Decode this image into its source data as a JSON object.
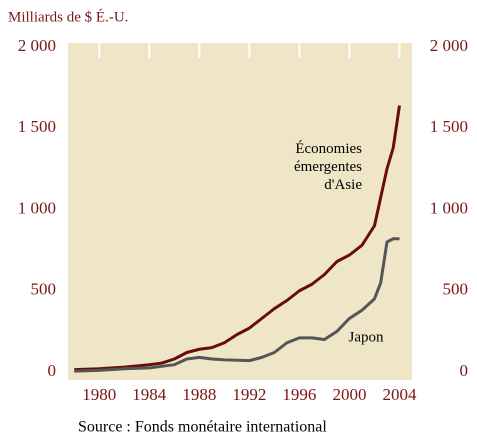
{
  "chart_data": {
    "type": "line",
    "title": "Milliards de $ É.-U.",
    "source": "Source : Fonds monétaire international",
    "xlim": [
      1977.5,
      2005
    ],
    "xticks": [
      1980,
      1984,
      1988,
      1992,
      1996,
      2000,
      2004
    ],
    "ylim": [
      0,
      2000
    ],
    "yticks": [
      0,
      500,
      {
        "value": 1000,
        "label": "1 000"
      },
      {
        "value": 1500,
        "label": "1 500"
      },
      {
        "value": 2000,
        "label": "2 000"
      }
    ],
    "y2lim": [
      0,
      2000
    ],
    "y2ticks": [
      0,
      500,
      {
        "value": 1000,
        "label": "1 000"
      },
      {
        "value": 1500,
        "label": "1 500"
      },
      {
        "value": 2000,
        "label": "2 000"
      }
    ],
    "series": [
      {
        "name": "Économies émergentes d'Asie",
        "color": "#6b0c0c",
        "x": [
          1978,
          1980,
          1982,
          1984,
          1985,
          1986,
          1987,
          1988,
          1989,
          1990,
          1991,
          1992,
          1993,
          1994,
          1995,
          1996,
          1997,
          1998,
          1999,
          2000,
          2001,
          2002,
          2003,
          2003.5,
          2004
        ],
        "values": [
          15,
          20,
          30,
          45,
          55,
          80,
          120,
          140,
          150,
          180,
          230,
          270,
          330,
          390,
          440,
          500,
          540,
          600,
          680,
          720,
          780,
          900,
          1250,
          1380,
          1640
        ]
      },
      {
        "name": "Japon",
        "color": "#555555",
        "x": [
          1978,
          1980,
          1982,
          1984,
          1986,
          1987,
          1988,
          1989,
          1990,
          1992,
          1993,
          1994,
          1995,
          1996,
          1997,
          1998,
          1999,
          2000,
          2001,
          2002,
          2002.5,
          2003,
          2003.5,
          2004
        ],
        "values": [
          5,
          10,
          20,
          25,
          45,
          80,
          90,
          80,
          75,
          70,
          90,
          120,
          180,
          210,
          210,
          200,
          250,
          330,
          380,
          450,
          550,
          800,
          820,
          820
        ]
      }
    ]
  }
}
